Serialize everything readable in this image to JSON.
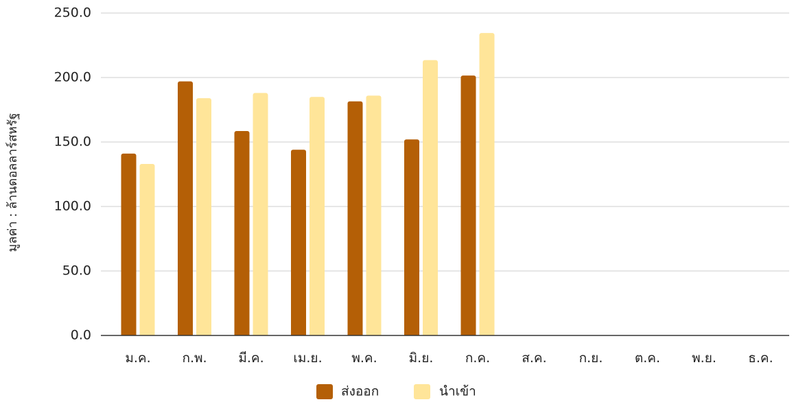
{
  "chart_data": {
    "type": "bar",
    "title": "",
    "xlabel": "",
    "ylabel": "มูลค่า : ล้านดอลลาร์สหรัฐ",
    "ylim": [
      0,
      250
    ],
    "yticks": [
      "0.0",
      "50.0",
      "100.0",
      "150.0",
      "200.0",
      "250.0"
    ],
    "grid": true,
    "legend_position": "bottom",
    "categories": [
      "ม.ค.",
      "ก.พ.",
      "มี.ค.",
      "เม.ย.",
      "พ.ค.",
      "มิ.ย.",
      "ก.ค.",
      "ส.ค.",
      "ก.ย.",
      "ต.ค.",
      "พ.ย.",
      "ธ.ค."
    ],
    "series": [
      {
        "name": "ส่งออก",
        "color": "#b45f06",
        "values": [
          141,
          197,
          158.5,
          144,
          181.5,
          152,
          201.5,
          null,
          null,
          null,
          null,
          null
        ]
      },
      {
        "name": "นำเข้า",
        "color": "#ffe599",
        "values": [
          133,
          184,
          188,
          185,
          186,
          213.5,
          234.5,
          null,
          null,
          null,
          null,
          null
        ]
      }
    ]
  }
}
